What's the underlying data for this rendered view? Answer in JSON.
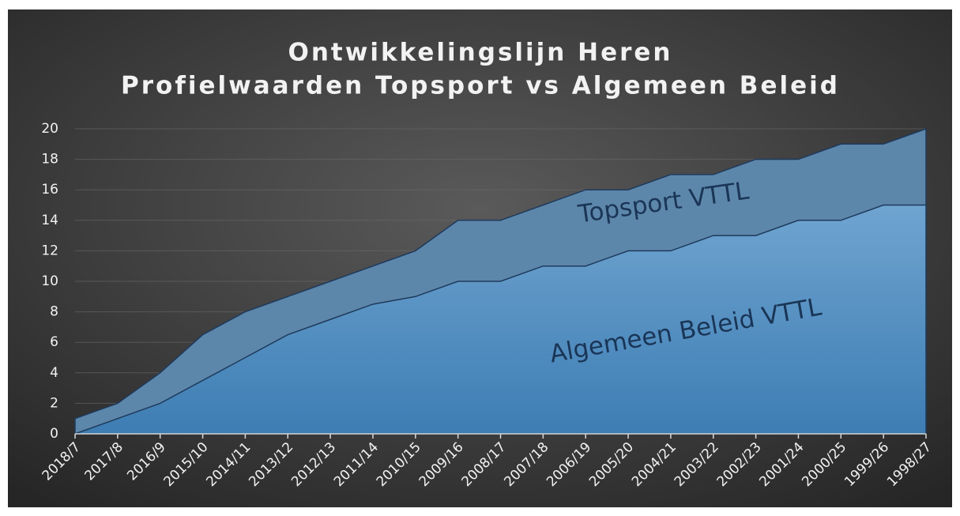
{
  "chart_data": {
    "type": "area",
    "title": [
      "Ontwikkelingslijn Heren",
      "Profielwaarden Topsport vs Algemeen Beleid"
    ],
    "categories": [
      "2018/7",
      "2017/8",
      "2016/9",
      "2015/10",
      "2014/11",
      "2013/12",
      "2012/13",
      "2011/14",
      "2010/15",
      "2009/16",
      "2008/17",
      "2007/18",
      "2006/19",
      "2005/20",
      "2004/21",
      "2003/22",
      "2002/23",
      "2001/24",
      "2000/25",
      "1999/26",
      "1998/27"
    ],
    "series": [
      {
        "name": "Topsport VTTL",
        "color": "#5d87aa",
        "values": [
          1,
          2,
          4,
          6.5,
          8,
          9,
          10,
          11,
          12,
          14,
          14,
          15,
          16,
          16,
          17,
          17,
          18,
          18,
          19,
          19,
          20
        ]
      },
      {
        "name": "Algemeen Beleid VTTL",
        "color": "#5b93c4",
        "values": [
          0,
          1,
          2,
          3.5,
          5,
          6.5,
          7.5,
          8.5,
          9,
          10,
          10,
          11,
          11,
          12,
          12,
          13,
          13,
          14,
          14,
          15,
          15
        ]
      }
    ],
    "ylim": [
      0,
      20
    ],
    "yticks": [
      0,
      2,
      4,
      6,
      8,
      10,
      12,
      14,
      16,
      18,
      20
    ],
    "grid": true
  }
}
